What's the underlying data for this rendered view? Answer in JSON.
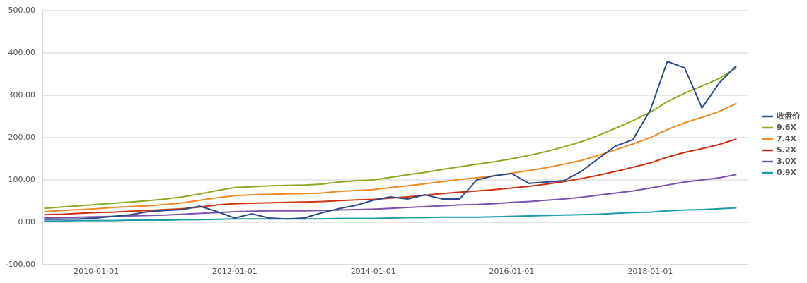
{
  "chart_data": {
    "type": "line",
    "x": [
      "2009-04-01",
      "2009-07-01",
      "2009-10-01",
      "2010-01-01",
      "2010-04-01",
      "2010-07-01",
      "2010-10-01",
      "2011-01-01",
      "2011-04-01",
      "2011-07-01",
      "2011-10-01",
      "2012-01-01",
      "2012-04-01",
      "2012-07-01",
      "2012-10-01",
      "2013-01-01",
      "2013-04-01",
      "2013-07-01",
      "2013-10-01",
      "2014-01-01",
      "2014-04-01",
      "2014-07-01",
      "2014-10-01",
      "2015-01-01",
      "2015-04-01",
      "2015-07-01",
      "2015-10-01",
      "2016-01-01",
      "2016-04-01",
      "2016-07-01",
      "2016-10-01",
      "2017-01-01",
      "2017-04-01",
      "2017-07-01",
      "2017-10-01",
      "2018-01-01",
      "2018-04-01",
      "2018-07-01",
      "2018-10-01",
      "2019-01-01",
      "2019-04-01"
    ],
    "series": [
      {
        "name": "收盘价",
        "color": "#2e4a8c",
        "values": [
          7,
          7,
          8,
          10,
          14,
          18,
          25,
          28,
          30,
          38,
          25,
          10,
          20,
          10,
          8,
          10,
          22,
          32,
          40,
          52,
          60,
          55,
          65,
          55,
          55,
          100,
          110,
          115,
          92,
          95,
          98,
          120,
          150,
          180,
          195,
          265,
          380,
          365,
          270,
          330,
          370
        ]
      },
      {
        "name": "9.6X",
        "color": "#8aab21",
        "values": [
          33,
          36,
          39,
          42,
          45,
          48,
          51,
          55,
          60,
          67,
          75,
          82,
          84,
          86,
          87,
          88,
          90,
          95,
          98,
          100,
          106,
          112,
          118,
          125,
          131,
          137,
          143,
          150,
          158,
          167,
          178,
          190,
          205,
          222,
          240,
          260,
          285,
          305,
          322,
          340,
          365
        ]
      },
      {
        "name": "7.4X",
        "color": "#f08a24",
        "values": [
          25,
          28,
          30,
          32,
          35,
          37,
          39,
          42,
          46,
          52,
          58,
          63,
          65,
          66,
          67,
          68,
          69,
          73,
          75,
          77,
          82,
          86,
          91,
          96,
          101,
          105,
          110,
          116,
          122,
          129,
          137,
          146,
          158,
          171,
          185,
          200,
          219,
          235,
          248,
          262,
          281
        ]
      },
      {
        "name": "5.2X",
        "color": "#cc3311",
        "values": [
          18,
          19,
          21,
          23,
          24,
          26,
          28,
          30,
          32,
          36,
          41,
          44,
          45,
          46,
          47,
          48,
          49,
          51,
          53,
          54,
          57,
          60,
          64,
          68,
          71,
          74,
          77,
          81,
          85,
          90,
          96,
          103,
          111,
          120,
          130,
          140,
          154,
          165,
          174,
          184,
          197
        ]
      },
      {
        "name": "3.0X",
        "color": "#7b52ae",
        "values": [
          10,
          11,
          12,
          13,
          14,
          15,
          16,
          17,
          19,
          21,
          23,
          25,
          26,
          27,
          27,
          27,
          28,
          29,
          30,
          31,
          33,
          35,
          37,
          39,
          41,
          42,
          44,
          47,
          49,
          52,
          55,
          59,
          64,
          69,
          74,
          81,
          88,
          95,
          100,
          105,
          113
        ]
      },
      {
        "name": "0.9X",
        "color": "#1f9aa8",
        "values": [
          3,
          3,
          4,
          4,
          4,
          5,
          5,
          5,
          6,
          6,
          7,
          8,
          8,
          8,
          8,
          8,
          8,
          9,
          9,
          9,
          10,
          11,
          11,
          12,
          12,
          12,
          13,
          14,
          15,
          16,
          17,
          18,
          19,
          21,
          23,
          24,
          27,
          29,
          30,
          32,
          34
        ]
      }
    ],
    "xlim": [
      "2009-03-23",
      "2019-06-02"
    ],
    "xticks": [
      "2010-01-01",
      "2012-01-01",
      "2014-01-01",
      "2016-01-01",
      "2018-01-01"
    ],
    "ylim": [
      -100,
      500
    ],
    "yticks": [
      {
        "value": -100,
        "label": "-100.00"
      },
      {
        "value": 0,
        "label": "0.00"
      },
      {
        "value": 100,
        "label": "100.00"
      },
      {
        "value": 200,
        "label": "200.00"
      },
      {
        "value": 300,
        "label": "300.00"
      },
      {
        "value": 400,
        "label": "400.00"
      },
      {
        "value": 500,
        "label": "500.00"
      }
    ],
    "grid": true,
    "legend": "right"
  }
}
